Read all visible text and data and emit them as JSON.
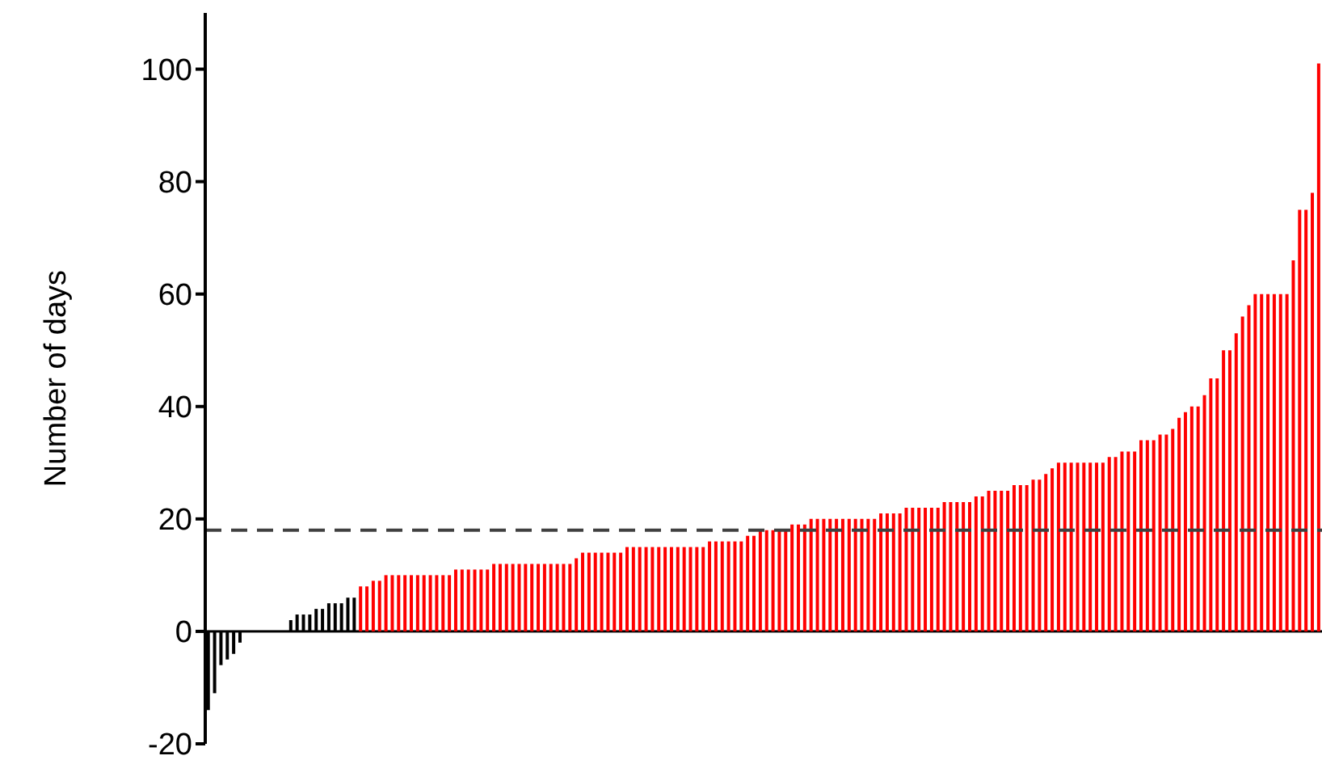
{
  "chart_data": {
    "type": "bar",
    "ylabel": "Number of days",
    "categories": [
      null,
      null,
      null,
      null,
      null,
      null,
      null,
      null,
      null,
      null,
      null,
      null,
      null,
      null,
      null,
      null,
      null,
      null,
      null,
      null,
      null,
      null,
      null,
      null,
      null,
      null,
      null,
      null,
      null,
      null,
      null,
      null,
      null,
      null,
      null,
      null,
      null,
      null,
      null,
      null,
      null,
      null,
      null,
      null,
      null,
      null,
      null,
      null,
      null,
      null,
      null,
      null,
      null,
      null,
      null,
      null,
      null,
      null,
      null,
      null,
      null,
      null,
      null,
      null,
      null,
      null,
      null,
      null,
      null,
      null,
      null,
      null,
      null,
      null,
      null,
      null,
      null,
      null,
      null,
      null,
      null,
      null,
      null,
      null,
      null,
      null,
      null,
      null,
      null,
      null,
      null,
      null,
      null,
      null,
      null,
      null,
      null,
      null,
      null,
      null,
      null,
      null,
      null,
      null,
      null,
      null,
      null,
      null,
      null,
      null,
      null,
      null,
      null,
      null,
      null,
      null,
      null,
      null,
      null,
      null,
      null,
      null,
      null,
      null,
      null,
      null,
      null,
      null,
      null,
      null,
      null,
      null,
      null,
      null,
      null,
      null,
      null,
      null,
      null,
      null,
      null,
      null,
      null,
      null,
      null,
      null,
      null,
      null,
      null,
      null,
      null,
      null,
      null,
      null,
      null,
      null,
      null,
      null,
      null,
      null,
      null,
      null,
      null,
      null,
      null,
      null,
      null,
      null,
      null,
      null,
      null,
      null,
      null,
      null,
      null,
      null
    ],
    "values": [
      -14,
      -11,
      -6,
      -5,
      -4,
      -2,
      0,
      0,
      0,
      0,
      0,
      0,
      0,
      2,
      3,
      3,
      3,
      4,
      4,
      5,
      5,
      5,
      6,
      6,
      8,
      8,
      9,
      9,
      10,
      10,
      10,
      10,
      10,
      10,
      10,
      10,
      10,
      10,
      10,
      11,
      11,
      11,
      11,
      11,
      11,
      12,
      12,
      12,
      12,
      12,
      12,
      12,
      12,
      12,
      12,
      12,
      12,
      12,
      13,
      14,
      14,
      14,
      14,
      14,
      14,
      14,
      15,
      15,
      15,
      15,
      15,
      15,
      15,
      15,
      15,
      15,
      15,
      15,
      15,
      16,
      16,
      16,
      16,
      16,
      16,
      17,
      17,
      18,
      18,
      18,
      18,
      18,
      19,
      19,
      19,
      20,
      20,
      20,
      20,
      20,
      20,
      20,
      20,
      20,
      20,
      20,
      21,
      21,
      21,
      21,
      22,
      22,
      22,
      22,
      22,
      22,
      23,
      23,
      23,
      23,
      23,
      24,
      24,
      25,
      25,
      25,
      25,
      26,
      26,
      26,
      27,
      27,
      28,
      29,
      30,
      30,
      30,
      30,
      30,
      30,
      30,
      30,
      31,
      31,
      32,
      32,
      32,
      34,
      34,
      34,
      35,
      35,
      36,
      38,
      39,
      40,
      40,
      42,
      45,
      45,
      50,
      50,
      53,
      56,
      58,
      60,
      60,
      60,
      60,
      60,
      60,
      66,
      75,
      75,
      78,
      101
    ],
    "colors": [
      "#000000",
      "#000000",
      "#000000",
      "#000000",
      "#000000",
      "#000000",
      "#000000",
      "#000000",
      "#000000",
      "#000000",
      "#000000",
      "#000000",
      "#000000",
      "#000000",
      "#000000",
      "#000000",
      "#000000",
      "#000000",
      "#000000",
      "#000000",
      "#000000",
      "#000000",
      "#000000",
      "#000000",
      "#ff0000",
      "#ff0000",
      "#ff0000",
      "#ff0000",
      "#ff0000",
      "#ff0000",
      "#ff0000",
      "#ff0000",
      "#ff0000",
      "#ff0000",
      "#ff0000",
      "#ff0000",
      "#ff0000",
      "#ff0000",
      "#ff0000",
      "#ff0000",
      "#ff0000",
      "#ff0000",
      "#ff0000",
      "#ff0000",
      "#ff0000",
      "#ff0000",
      "#ff0000",
      "#ff0000",
      "#ff0000",
      "#ff0000",
      "#ff0000",
      "#ff0000",
      "#ff0000",
      "#ff0000",
      "#ff0000",
      "#ff0000",
      "#ff0000",
      "#ff0000",
      "#ff0000",
      "#ff0000",
      "#ff0000",
      "#ff0000",
      "#ff0000",
      "#ff0000",
      "#ff0000",
      "#ff0000",
      "#ff0000",
      "#ff0000",
      "#ff0000",
      "#ff0000",
      "#ff0000",
      "#ff0000",
      "#ff0000",
      "#ff0000",
      "#ff0000",
      "#ff0000",
      "#ff0000",
      "#ff0000",
      "#ff0000",
      "#ff0000",
      "#ff0000",
      "#ff0000",
      "#ff0000",
      "#ff0000",
      "#ff0000",
      "#ff0000",
      "#ff0000",
      "#ff0000",
      "#ff0000",
      "#ff0000",
      "#ff0000",
      "#ff0000",
      "#ff0000",
      "#ff0000",
      "#ff0000",
      "#ff0000",
      "#ff0000",
      "#ff0000",
      "#ff0000",
      "#ff0000",
      "#ff0000",
      "#ff0000",
      "#ff0000",
      "#ff0000",
      "#ff0000",
      "#ff0000",
      "#ff0000",
      "#ff0000",
      "#ff0000",
      "#ff0000",
      "#ff0000",
      "#ff0000",
      "#ff0000",
      "#ff0000",
      "#ff0000",
      "#ff0000",
      "#ff0000",
      "#ff0000",
      "#ff0000",
      "#ff0000",
      "#ff0000",
      "#ff0000",
      "#ff0000",
      "#ff0000",
      "#ff0000",
      "#ff0000",
      "#ff0000",
      "#ff0000",
      "#ff0000",
      "#ff0000",
      "#ff0000",
      "#ff0000",
      "#ff0000",
      "#ff0000",
      "#ff0000",
      "#ff0000",
      "#ff0000",
      "#ff0000",
      "#ff0000",
      "#ff0000",
      "#ff0000",
      "#ff0000",
      "#ff0000",
      "#ff0000",
      "#ff0000",
      "#ff0000",
      "#ff0000",
      "#ff0000",
      "#ff0000",
      "#ff0000",
      "#ff0000",
      "#ff0000",
      "#ff0000",
      "#ff0000",
      "#ff0000",
      "#ff0000",
      "#ff0000",
      "#ff0000",
      "#ff0000",
      "#ff0000",
      "#ff0000",
      "#ff0000",
      "#ff0000",
      "#ff0000",
      "#ff0000",
      "#ff0000",
      "#ff0000",
      "#ff0000",
      "#ff0000",
      "#ff0000",
      "#ff0000",
      "#ff0000",
      "#ff0000",
      "#ff0000",
      "#ff0000",
      "#ff0000"
    ],
    "ylim": [
      -20,
      110
    ],
    "yticks": [
      -20,
      0,
      20,
      40,
      60,
      80,
      100
    ],
    "grid": false,
    "legend": false,
    "ref_lines": [
      {
        "axis": "y",
        "value": 18,
        "color": "#404040",
        "line_style": "dashed"
      }
    ]
  }
}
